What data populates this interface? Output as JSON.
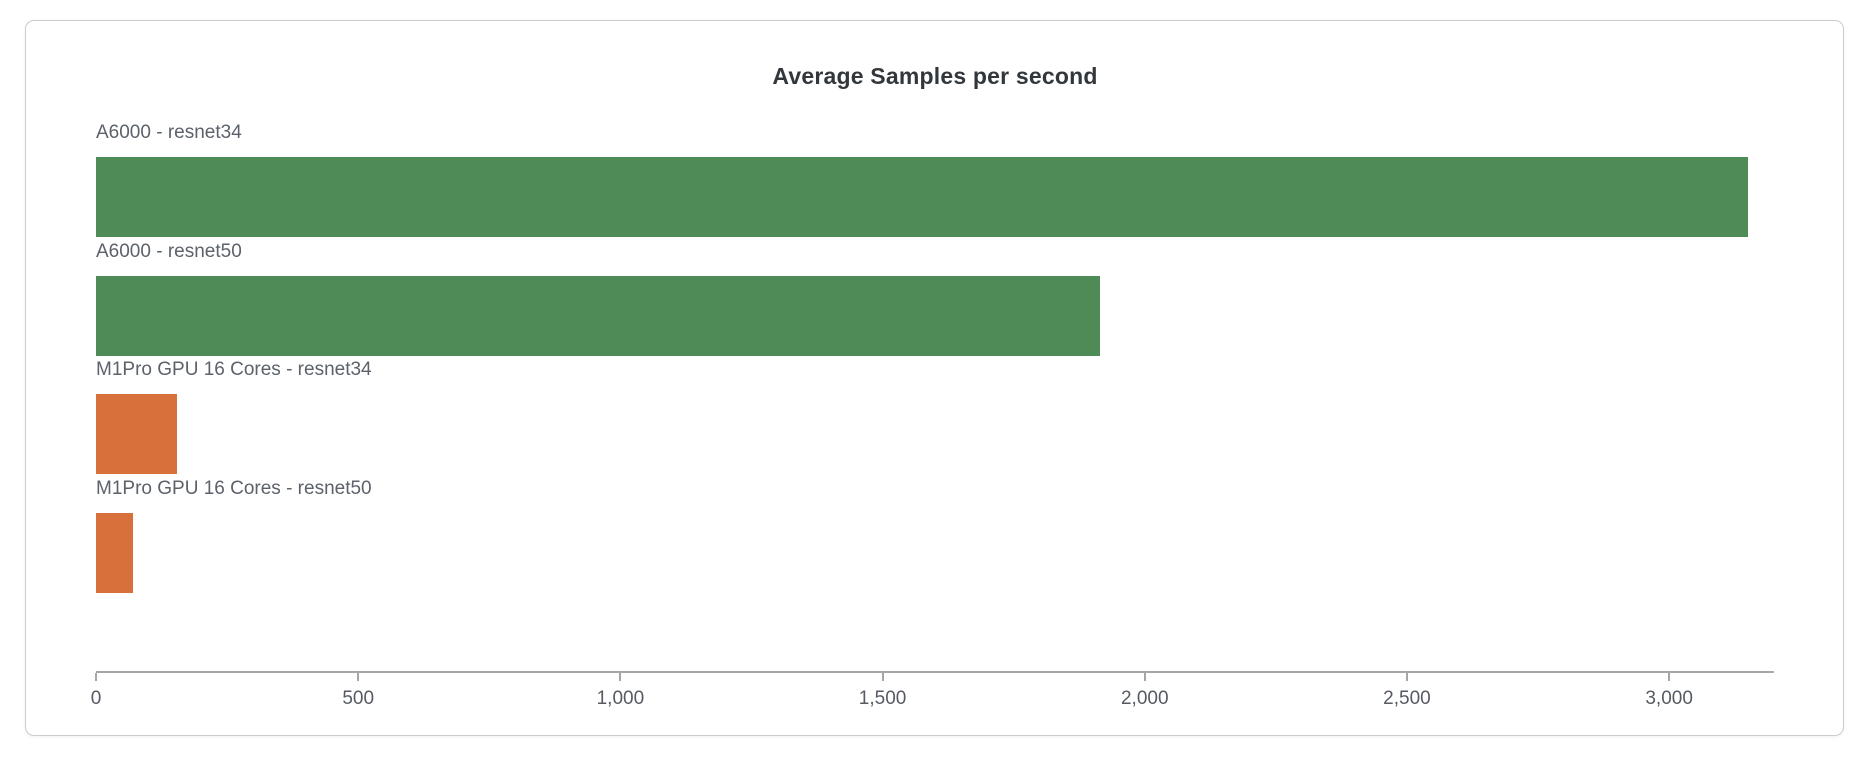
{
  "chart_data": {
    "type": "bar",
    "orientation": "horizontal",
    "title": "Average Samples per second",
    "categories": [
      "A6000 - resnet34",
      "A6000 - resnet50",
      "M1Pro GPU 16 Cores - resnet34",
      "M1Pro GPU 16 Cores - resnet50"
    ],
    "values": [
      3150,
      1915,
      155,
      70
    ],
    "bar_colors": [
      "#4e8b56",
      "#4e8b56",
      "#d7703a",
      "#d7703a"
    ],
    "color_legend": {
      "green": "#4e8b56",
      "orange": "#d7703a"
    },
    "xlabel": "",
    "ylabel": "",
    "xlim": [
      0,
      3200
    ],
    "x_ticks": [
      0,
      500,
      1000,
      1500,
      2000,
      2500,
      3000
    ],
    "x_tick_labels": [
      "0",
      "500",
      "1,000",
      "1,500",
      "2,000",
      "2,500",
      "3,000"
    ],
    "grid": false,
    "legend_position": "none"
  }
}
